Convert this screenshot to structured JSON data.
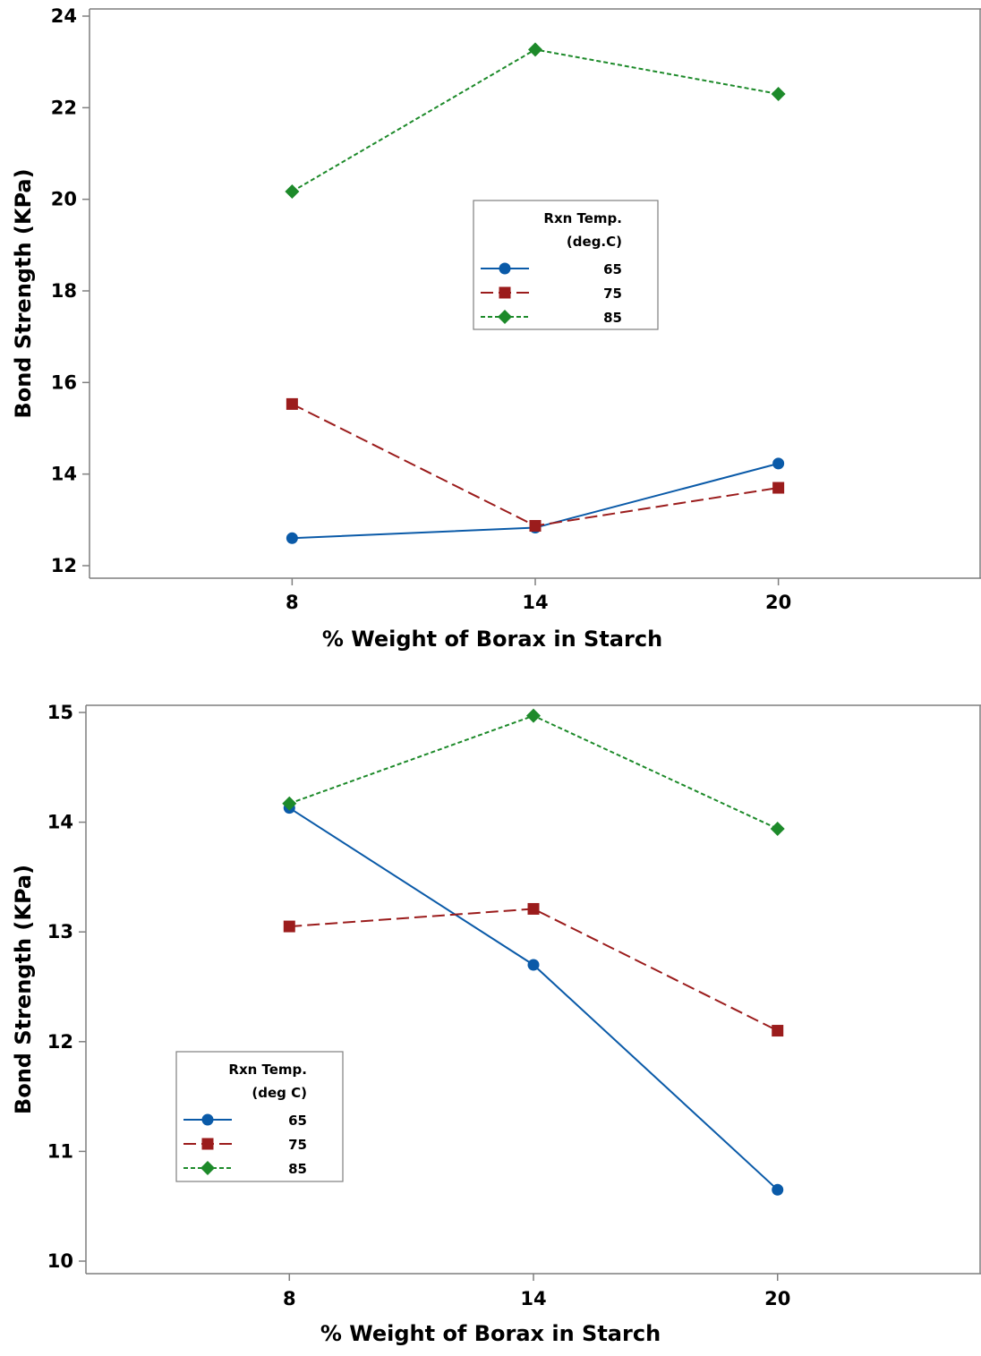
{
  "chart_data": [
    {
      "type": "line",
      "x": [
        8,
        14,
        20
      ],
      "xticks": [
        "8",
        "14",
        "20"
      ],
      "xlabel": "% Weight of Borax in Starch",
      "ylabel": "Bond Strength (KPa)",
      "ylim": [
        12,
        24
      ],
      "yticks": [
        12,
        14,
        16,
        18,
        20,
        22,
        24
      ],
      "legend": {
        "title_line1": "Rxn Temp.",
        "title_line2": "(deg.C)",
        "position": "center"
      },
      "series": [
        {
          "name": "65",
          "color": "#0a5aa8",
          "marker": "circle",
          "dash": "solid",
          "values": [
            12.6,
            12.83,
            14.23
          ]
        },
        {
          "name": "75",
          "color": "#9b1c1c",
          "marker": "square",
          "dash": "dashed",
          "values": [
            15.53,
            12.87,
            13.7
          ]
        },
        {
          "name": "85",
          "color": "#1d8a2a",
          "marker": "diamond",
          "dash": "dotted",
          "values": [
            20.17,
            23.27,
            22.3
          ]
        }
      ]
    },
    {
      "type": "line",
      "x": [
        8,
        14,
        20
      ],
      "xticks": [
        "8",
        "14",
        "20"
      ],
      "xlabel": "% Weight of Borax in Starch",
      "ylabel": "Bond Strength (KPa)",
      "ylim": [
        10,
        15
      ],
      "yticks": [
        10,
        11,
        12,
        13,
        14,
        15
      ],
      "legend": {
        "title_line1": "Rxn Temp.",
        "title_line2": "(deg C)",
        "position": "bottom-left"
      },
      "series": [
        {
          "name": "65",
          "color": "#0a5aa8",
          "marker": "circle",
          "dash": "solid",
          "values": [
            14.13,
            12.7,
            10.65
          ]
        },
        {
          "name": "75",
          "color": "#9b1c1c",
          "marker": "square",
          "dash": "dashed",
          "values": [
            13.05,
            13.21,
            12.1
          ]
        },
        {
          "name": "85",
          "color": "#1d8a2a",
          "marker": "diamond",
          "dash": "dotted",
          "values": [
            14.17,
            14.97,
            13.94
          ]
        }
      ]
    }
  ]
}
